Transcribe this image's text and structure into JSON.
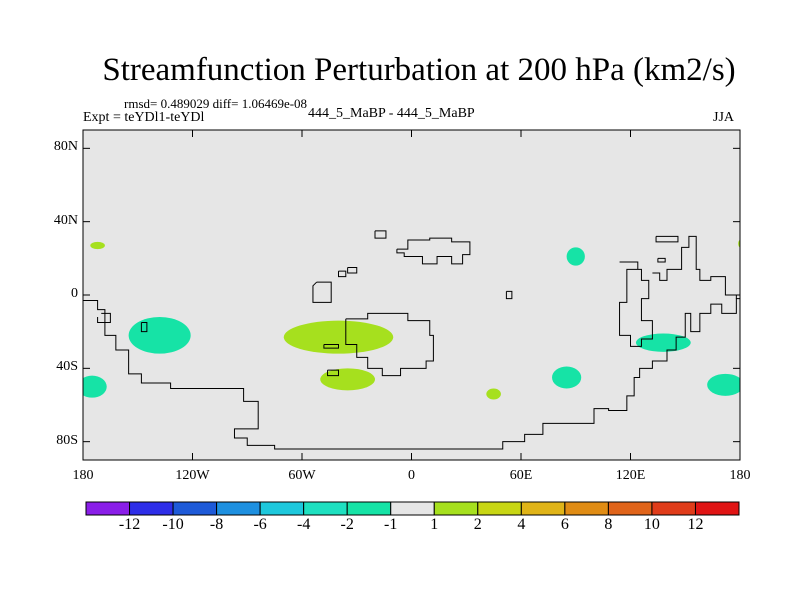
{
  "chart_data": {
    "type": "heatmap",
    "title": "Streamfunction Perturbation at 200 hPa (km2/s)",
    "stats": "rmsd= 0.489029 diff= 1.06469e-08",
    "experiment": "Expt = teYDl1-teYDl",
    "case": "444_5_MaBP - 444_5_MaBP",
    "season": "JJA",
    "xlim": [
      -180,
      180
    ],
    "ylim": [
      -90,
      90
    ],
    "x_ticks": [
      {
        "value": -180,
        "label": "180"
      },
      {
        "value": -120,
        "label": "120W"
      },
      {
        "value": -60,
        "label": "60W"
      },
      {
        "value": 0,
        "label": "0"
      },
      {
        "value": 60,
        "label": "60E"
      },
      {
        "value": 120,
        "label": "120E"
      },
      {
        "value": 180,
        "label": "180"
      }
    ],
    "y_ticks": [
      {
        "value": 80,
        "label": "80N"
      },
      {
        "value": 40,
        "label": "40N"
      },
      {
        "value": 0,
        "label": "0"
      },
      {
        "value": -40,
        "label": "40S"
      },
      {
        "value": -80,
        "label": "80S"
      }
    ],
    "colorbar": {
      "colors": [
        "#8a1ee8",
        "#2e2ee8",
        "#1e5ad8",
        "#1e90e0",
        "#1ec8dc",
        "#1ee0c0",
        "#16e3a6",
        "#e6e6e6",
        "#a6e01e",
        "#c8d614",
        "#e0b418",
        "#e08c14",
        "#e0641a",
        "#e03c1a",
        "#e01414"
      ],
      "labels": [
        "-12",
        "-10",
        "-8",
        "-6",
        "-4",
        "-2",
        "-1",
        "1",
        "2",
        "4",
        "6",
        "8",
        "10",
        "12"
      ]
    },
    "anomalies": [
      {
        "lon": -172,
        "lat": 27,
        "rlon": 4,
        "rlat": 2,
        "color": "#a6e01e"
      },
      {
        "lon": -175,
        "lat": -50,
        "rlon": 8,
        "rlat": 6,
        "color": "#16e3a6"
      },
      {
        "lon": -138,
        "lat": -22,
        "rlon": 17,
        "rlat": 10,
        "color": "#16e3a6"
      },
      {
        "lon": -40,
        "lat": -23,
        "rlon": 30,
        "rlat": 9,
        "color": "#a6e01e"
      },
      {
        "lon": -35,
        "lat": -46,
        "rlon": 15,
        "rlat": 6,
        "color": "#a6e01e"
      },
      {
        "lon": 45,
        "lat": -54,
        "rlon": 4,
        "rlat": 3,
        "color": "#a6e01e"
      },
      {
        "lon": 90,
        "lat": 21,
        "rlon": 5,
        "rlat": 5,
        "color": "#16e3a6"
      },
      {
        "lon": 85,
        "lat": -45,
        "rlon": 8,
        "rlat": 6,
        "color": "#16e3a6"
      },
      {
        "lon": 138,
        "lat": -26,
        "rlon": 15,
        "rlat": 5,
        "color": "#16e3a6"
      },
      {
        "lon": 172,
        "lat": -49,
        "rlon": 10,
        "rlat": 6,
        "color": "#16e3a6"
      },
      {
        "lon": 180,
        "lat": 28,
        "rlon": 1,
        "rlat": 2,
        "color": "#a6e01e"
      }
    ],
    "coastlines": [
      [
        [
          -180,
          -3
        ],
        [
          -172,
          -3
        ],
        [
          -172,
          -8
        ],
        [
          -168,
          -8
        ],
        [
          -168,
          -22
        ],
        [
          -162,
          -22
        ],
        [
          -162,
          -30
        ],
        [
          -155,
          -30
        ],
        [
          -155,
          -43
        ],
        [
          -148,
          -43
        ],
        [
          -148,
          -48
        ],
        [
          -132,
          -48
        ],
        [
          -132,
          -51
        ],
        [
          -92,
          -51
        ],
        [
          -92,
          -58
        ],
        [
          -84,
          -58
        ],
        [
          -84,
          -73
        ],
        [
          -97,
          -73
        ],
        [
          -97,
          -78
        ],
        [
          -90,
          -78
        ],
        [
          -90,
          -82
        ],
        [
          -75,
          -82
        ],
        [
          -75,
          -84
        ],
        [
          50,
          -84
        ],
        [
          50,
          -80
        ],
        [
          62,
          -80
        ],
        [
          62,
          -76
        ],
        [
          72,
          -76
        ],
        [
          72,
          -70
        ],
        [
          100,
          -70
        ],
        [
          100,
          -62
        ],
        [
          108,
          -62
        ],
        [
          108,
          -63
        ],
        [
          118,
          -63
        ],
        [
          118,
          -55
        ],
        [
          122,
          -55
        ],
        [
          122,
          -45
        ],
        [
          125,
          -45
        ],
        [
          125,
          -40
        ],
        [
          132,
          -40
        ],
        [
          132,
          -36
        ],
        [
          140,
          -36
        ],
        [
          140,
          -30
        ],
        [
          145,
          -30
        ],
        [
          145,
          -23
        ],
        [
          150,
          -23
        ],
        [
          150,
          -10
        ],
        [
          153,
          -10
        ],
        [
          153,
          -20
        ],
        [
          158,
          -20
        ],
        [
          158,
          -10
        ],
        [
          164,
          -10
        ],
        [
          164,
          -5
        ],
        [
          170,
          -5
        ],
        [
          170,
          -10
        ],
        [
          178,
          -10
        ],
        [
          178,
          -2
        ],
        [
          180,
          -2
        ]
      ],
      [
        [
          -170,
          -10
        ],
        [
          -165,
          -10
        ],
        [
          -165,
          -15
        ],
        [
          -172,
          -15
        ],
        [
          -172,
          -12
        ]
      ],
      [
        [
          -148,
          -15
        ],
        [
          -145,
          -15
        ],
        [
          -145,
          -20
        ],
        [
          -148,
          -20
        ],
        [
          -148,
          -15
        ]
      ],
      [
        [
          -52,
          7
        ],
        [
          -44,
          7
        ],
        [
          -44,
          -4
        ],
        [
          -54,
          -4
        ],
        [
          -54,
          5
        ],
        [
          -52,
          7
        ]
      ],
      [
        [
          -36,
          -13
        ],
        [
          -24,
          -13
        ],
        [
          -24,
          -10
        ],
        [
          -2,
          -10
        ],
        [
          -2,
          -14
        ],
        [
          10,
          -14
        ],
        [
          10,
          -22
        ],
        [
          12,
          -22
        ],
        [
          12,
          -36
        ],
        [
          8,
          -36
        ],
        [
          8,
          -40
        ],
        [
          -6,
          -40
        ],
        [
          -6,
          -44
        ],
        [
          -16,
          -44
        ],
        [
          -16,
          -40
        ],
        [
          -24,
          -40
        ],
        [
          -24,
          -34
        ],
        [
          -30,
          -34
        ],
        [
          -30,
          -27
        ],
        [
          -36,
          -27
        ],
        [
          -36,
          -13
        ]
      ],
      [
        [
          -48,
          -27
        ],
        [
          -40,
          -27
        ],
        [
          -40,
          -29
        ],
        [
          -48,
          -29
        ],
        [
          -48,
          -27
        ]
      ],
      [
        [
          -35,
          15
        ],
        [
          -30,
          15
        ],
        [
          -30,
          12
        ],
        [
          -35,
          12
        ],
        [
          -35,
          15
        ]
      ],
      [
        [
          -40,
          13
        ],
        [
          -36,
          13
        ],
        [
          -36,
          10
        ],
        [
          -40,
          10
        ],
        [
          -40,
          13
        ]
      ],
      [
        [
          -8,
          25
        ],
        [
          -2,
          25
        ],
        [
          -2,
          30
        ],
        [
          10,
          30
        ],
        [
          10,
          31
        ],
        [
          22,
          31
        ],
        [
          22,
          29
        ],
        [
          32,
          29
        ],
        [
          32,
          22
        ],
        [
          28,
          22
        ],
        [
          28,
          17
        ],
        [
          22,
          17
        ],
        [
          22,
          21
        ],
        [
          14,
          21
        ],
        [
          14,
          17
        ],
        [
          6,
          17
        ],
        [
          6,
          21
        ],
        [
          -4,
          21
        ],
        [
          -4,
          23
        ],
        [
          -8,
          23
        ],
        [
          -8,
          25
        ]
      ],
      [
        [
          -20,
          35
        ],
        [
          -14,
          35
        ],
        [
          -14,
          31
        ],
        [
          -20,
          31
        ],
        [
          -20,
          35
        ]
      ],
      [
        [
          52,
          2
        ],
        [
          55,
          2
        ],
        [
          55,
          -2
        ],
        [
          52,
          -2
        ],
        [
          52,
          2
        ]
      ],
      [
        [
          -46,
          -41
        ],
        [
          -40,
          -41
        ],
        [
          -40,
          -44
        ],
        [
          -46,
          -44
        ],
        [
          -46,
          -41
        ]
      ],
      [
        [
          114,
          18
        ],
        [
          124,
          18
        ],
        [
          124,
          14
        ],
        [
          118,
          14
        ],
        [
          118,
          -4
        ],
        [
          114,
          -4
        ],
        [
          114,
          -22
        ],
        [
          120,
          -22
        ],
        [
          120,
          -28
        ],
        [
          126,
          -28
        ],
        [
          126,
          -24
        ],
        [
          132,
          -24
        ],
        [
          132,
          -14
        ],
        [
          126,
          -14
        ],
        [
          126,
          -2
        ],
        [
          130,
          -2
        ],
        [
          130,
          8
        ],
        [
          126,
          8
        ],
        [
          126,
          14
        ],
        [
          124,
          14
        ]
      ],
      [
        [
          132,
          12
        ],
        [
          136,
          12
        ],
        [
          136,
          8
        ],
        [
          140,
          8
        ],
        [
          140,
          14
        ],
        [
          148,
          14
        ],
        [
          148,
          26
        ],
        [
          152,
          26
        ],
        [
          152,
          32
        ],
        [
          156,
          32
        ],
        [
          156,
          14
        ],
        [
          158,
          14
        ],
        [
          158,
          8
        ],
        [
          164,
          8
        ],
        [
          164,
          10
        ],
        [
          172,
          10
        ],
        [
          172,
          0
        ],
        [
          178,
          0
        ],
        [
          178,
          -2
        ]
      ],
      [
        [
          134,
          32
        ],
        [
          146,
          32
        ],
        [
          146,
          29
        ],
        [
          134,
          29
        ],
        [
          134,
          32
        ]
      ],
      [
        [
          135,
          20
        ],
        [
          139,
          20
        ],
        [
          139,
          18
        ],
        [
          135,
          18
        ],
        [
          135,
          20
        ]
      ]
    ]
  }
}
